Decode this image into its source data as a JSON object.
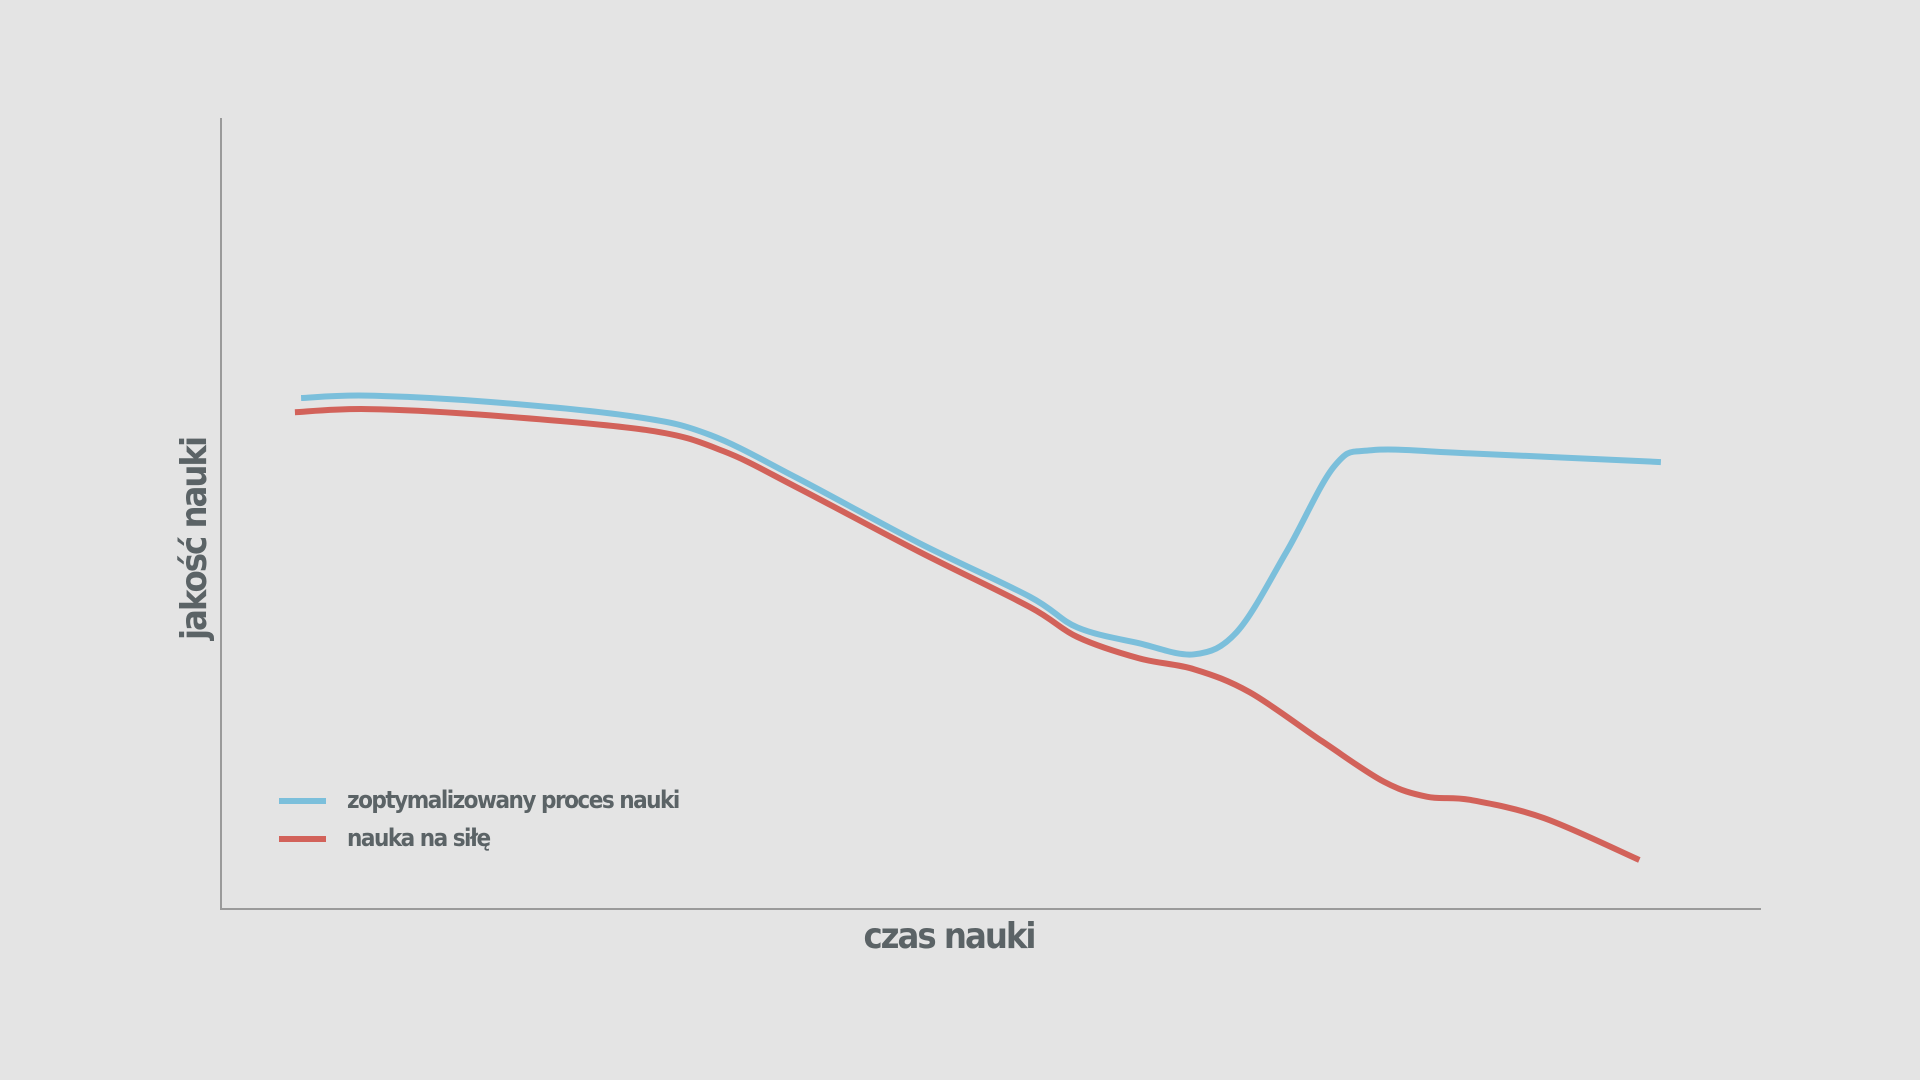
{
  "chart_data": {
    "type": "line",
    "x_label": "czas nauki",
    "y_label": "jakość nauki",
    "xlim": [
      0,
      100
    ],
    "ylim": [
      0,
      100
    ],
    "series": [
      {
        "name": "zoptymalizowany proces nauki",
        "color": "#7bbfdb",
        "x": [
          5.2,
          9.5,
          17.5,
          27.0,
          31.8,
          37.4,
          45.3,
          52.5,
          55.6,
          59.6,
          63.2,
          66.0,
          69.2,
          72.3,
          74.7,
          81.1,
          93.5
        ],
        "values": [
          64.6,
          64.9,
          64.1,
          62.2,
          59.9,
          54.5,
          46.3,
          39.5,
          35.6,
          33.6,
          32.2,
          35.1,
          45.2,
          56.0,
          58.0,
          57.6,
          56.5
        ]
      },
      {
        "name": "nauka na siłę",
        "color": "#d2625a",
        "x": [
          4.8,
          9.5,
          17.5,
          27.8,
          32.6,
          37.4,
          45.3,
          52.5,
          55.6,
          59.6,
          63.2,
          66.8,
          71.5,
          75.5,
          78.3,
          81.1,
          85.9,
          92.1
        ],
        "values": [
          62.8,
          63.2,
          62.4,
          60.5,
          57.9,
          53.3,
          45.2,
          38.2,
          34.4,
          31.7,
          30.3,
          27.4,
          21.2,
          16.1,
          14.2,
          13.8,
          11.5,
          6.2
        ]
      }
    ]
  }
}
